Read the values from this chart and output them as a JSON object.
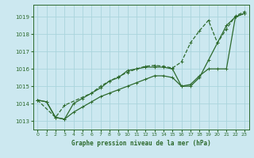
{
  "xlabel": "Graphe pression niveau de la mer (hPa)",
  "bg_color": "#cce8f0",
  "grid_color": "#aad4dc",
  "line_color": "#2d6a2d",
  "ylim": [
    1012.5,
    1019.7
  ],
  "xlim": [
    -0.5,
    23.5
  ],
  "yticks": [
    1013,
    1014,
    1015,
    1016,
    1017,
    1018,
    1019
  ],
  "xticks": [
    0,
    1,
    2,
    3,
    4,
    5,
    6,
    7,
    8,
    9,
    10,
    11,
    12,
    13,
    14,
    15,
    16,
    17,
    18,
    19,
    20,
    21,
    22,
    23
  ],
  "series1_x": [
    0,
    1,
    2,
    3,
    4,
    5,
    6,
    7,
    8,
    9,
    10,
    11,
    12,
    13,
    14,
    15,
    16,
    17,
    18,
    19,
    20,
    21,
    22,
    23
  ],
  "series1_y": [
    1014.2,
    1014.1,
    1013.2,
    1013.1,
    1013.5,
    1013.8,
    1014.1,
    1014.4,
    1014.6,
    1014.8,
    1015.0,
    1015.2,
    1015.4,
    1015.6,
    1015.6,
    1015.5,
    1015.0,
    1015.0,
    1015.5,
    1016.5,
    1017.5,
    1018.5,
    1019.0,
    1019.2
  ],
  "series2_x": [
    0,
    1,
    2,
    3,
    4,
    5,
    6,
    7,
    8,
    9,
    10,
    11,
    12,
    13,
    14,
    15,
    16,
    17,
    18,
    19,
    20,
    21,
    22,
    23
  ],
  "series2_y": [
    1014.2,
    1014.1,
    1013.2,
    1013.1,
    1014.0,
    1014.3,
    1014.6,
    1014.9,
    1015.3,
    1015.5,
    1015.9,
    1016.0,
    1016.1,
    1016.1,
    1016.1,
    1016.0,
    1015.0,
    1015.1,
    1015.6,
    1016.0,
    1016.0,
    1016.0,
    1019.0,
    1019.2
  ],
  "series3_x": [
    0,
    2,
    3,
    6,
    7,
    8,
    9,
    10,
    11,
    12,
    13,
    14,
    15,
    16,
    17,
    18,
    19,
    20,
    21,
    22,
    23
  ],
  "series3_y": [
    1014.2,
    1013.2,
    1013.9,
    1014.6,
    1015.0,
    1015.3,
    1015.55,
    1015.8,
    1016.0,
    1016.15,
    1016.2,
    1016.15,
    1016.05,
    1016.4,
    1017.5,
    1018.2,
    1018.8,
    1017.5,
    1018.3,
    1019.05,
    1019.3
  ],
  "series1_marker": "+",
  "series2_marker": "+",
  "series3_marker": "+",
  "series1_ls": "-",
  "series2_ls": "-",
  "series3_ls": "--"
}
